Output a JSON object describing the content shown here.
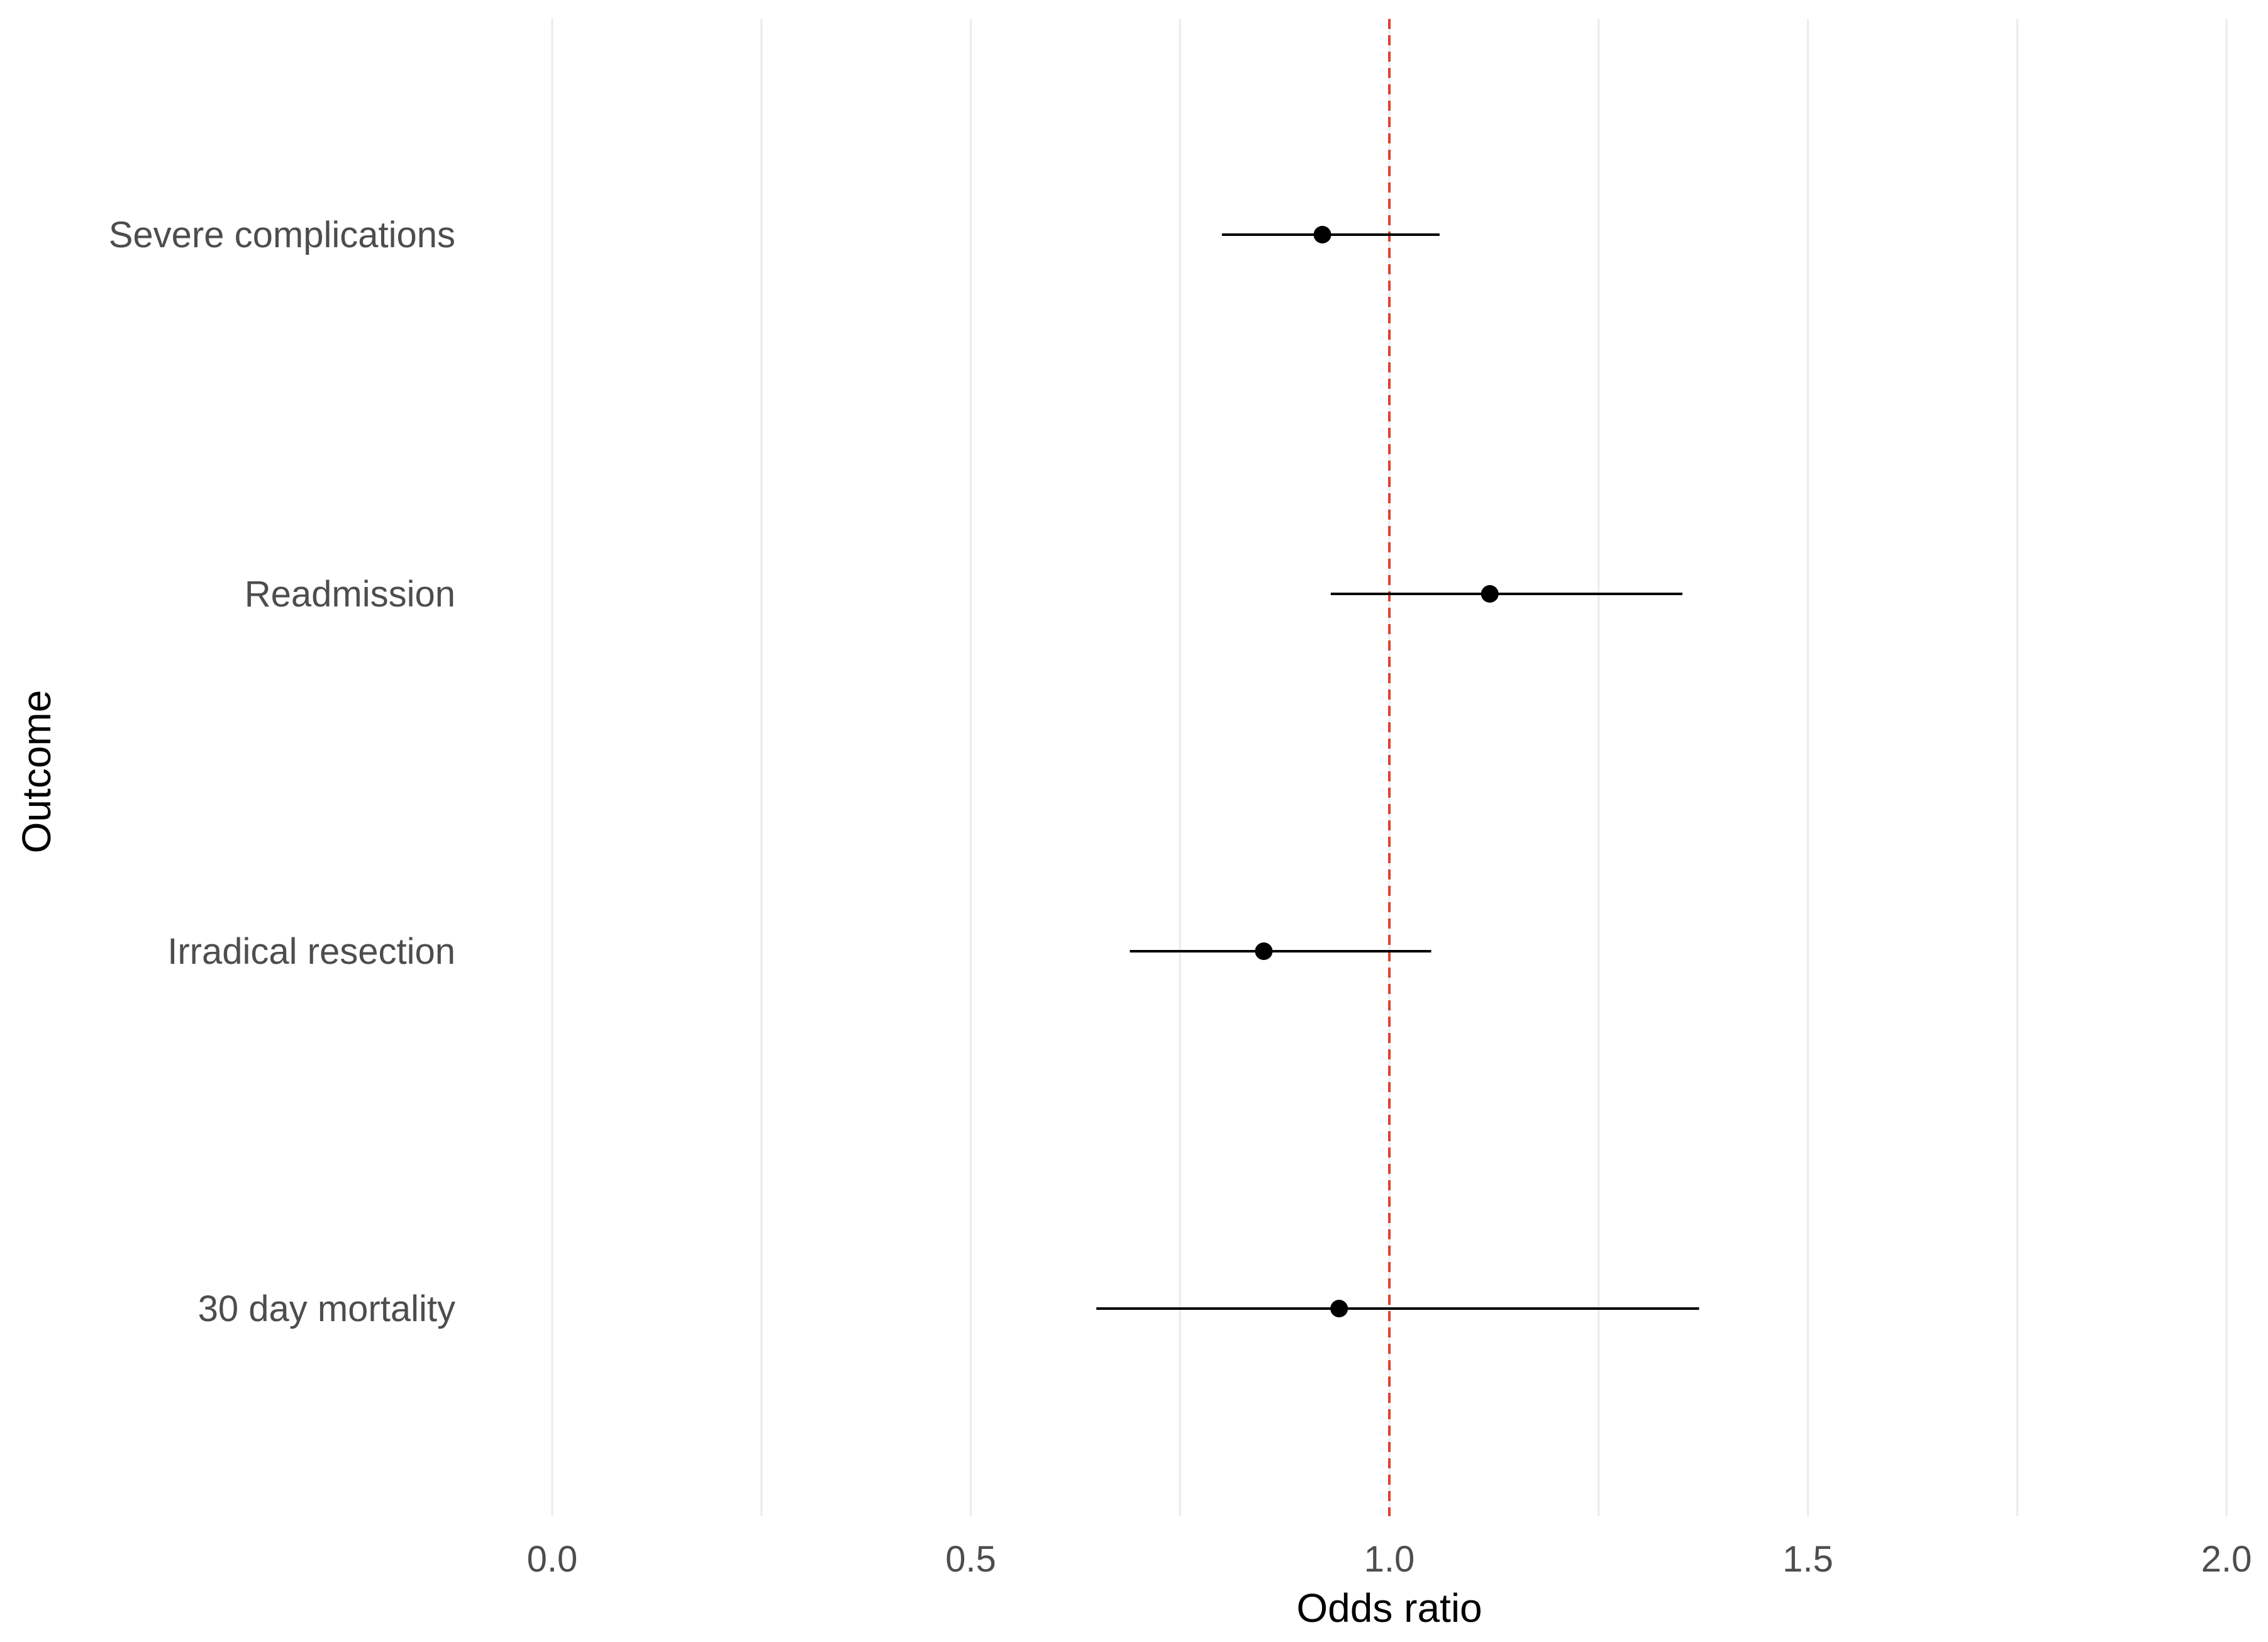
{
  "chart_data": {
    "type": "forest",
    "title": "",
    "xlabel": "Odds ratio",
    "ylabel": "Outcome",
    "xlim": [
      0,
      2
    ],
    "x_ticks": [
      0.0,
      0.5,
      1.0,
      1.5,
      2.0
    ],
    "x_tick_labels": [
      "0.0",
      "0.5",
      "1.0",
      "1.5",
      "2.0"
    ],
    "x_minor_ticks": [
      0.25,
      0.75,
      1.25,
      1.75
    ],
    "grid": true,
    "reference_line": {
      "x": 1.0,
      "style": "dashed",
      "color": "#e04030"
    },
    "outcomes": [
      {
        "label": "Severe complications",
        "or": 0.92,
        "lower": 0.8,
        "upper": 1.06
      },
      {
        "label": "Readmission",
        "or": 1.12,
        "lower": 0.93,
        "upper": 1.35
      },
      {
        "label": "Irradical resection",
        "or": 0.85,
        "lower": 0.69,
        "upper": 1.05
      },
      {
        "label": "30 day mortality",
        "or": 0.94,
        "lower": 0.65,
        "upper": 1.37
      }
    ]
  },
  "colors": {
    "grid": "#ebebeb",
    "point": "#000000",
    "ci_line": "#000000"
  }
}
